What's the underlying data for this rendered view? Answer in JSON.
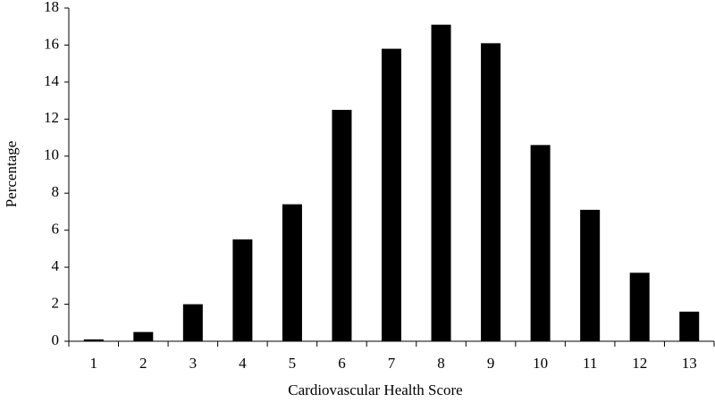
{
  "chart_data": {
    "type": "bar",
    "x_label": "Cardiovascular Health Score",
    "y_label": "Percentage",
    "categories": [
      "1",
      "2",
      "3",
      "4",
      "5",
      "6",
      "7",
      "8",
      "9",
      "10",
      "11",
      "12",
      "13"
    ],
    "values": [
      0.1,
      0.5,
      2.0,
      5.5,
      7.4,
      12.5,
      15.8,
      17.1,
      16.1,
      10.6,
      7.1,
      3.7,
      1.6
    ],
    "color": "#000000",
    "ylim": [
      0,
      18
    ],
    "yticks": [
      0,
      2,
      4,
      6,
      8,
      10,
      12,
      14,
      16,
      18
    ],
    "grid": false
  }
}
